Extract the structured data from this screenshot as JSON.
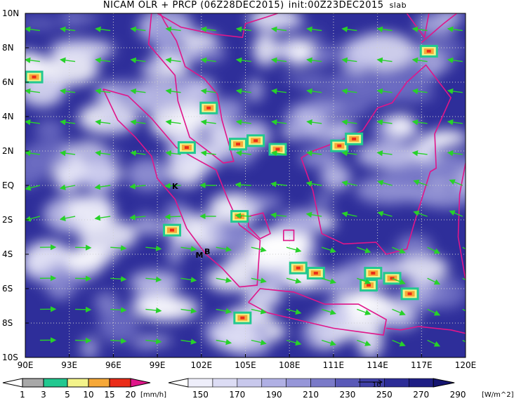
{
  "title": {
    "main": "NICAM OLR + PRCP (06Z28DEC2015)",
    "init": "init:00Z23DEC2015",
    "tag": "slab"
  },
  "axes": {
    "lon_labels": [
      "90E",
      "93E",
      "96E",
      "99E",
      "102E",
      "105E",
      "108E",
      "111E",
      "114E",
      "117E",
      "120E"
    ],
    "lat_labels": [
      "10N",
      "8N",
      "6N",
      "4N",
      "2N",
      "EQ",
      "2S",
      "4S",
      "6S",
      "8S",
      "10S"
    ],
    "lon_range": [
      90,
      120
    ],
    "lat_range": [
      -10,
      10
    ],
    "grid": "dotted"
  },
  "place_labels": [
    {
      "text": "K",
      "lon": 100.0,
      "lat": -0.2
    },
    {
      "text": "M",
      "lon": 101.6,
      "lat": -4.2
    },
    {
      "text": "B",
      "lon": 102.2,
      "lat": -4.0
    }
  ],
  "vector_reference": {
    "label": "10"
  },
  "precip_colorbar": {
    "ticks": [
      "1",
      "3",
      "5",
      "10",
      "15",
      "20"
    ],
    "unit": "[mm/h]",
    "colors": [
      "#ffffff",
      "#a8a8a8",
      "#22c890",
      "#f3f38a",
      "#f6a838",
      "#ea2c18",
      "#e0168a"
    ]
  },
  "olr_colorbar": {
    "ticks": [
      "150",
      "170",
      "190",
      "210",
      "230",
      "250",
      "270",
      "290"
    ],
    "unit": "[W/m^2]",
    "colors": [
      "#ffffff",
      "#eeeefa",
      "#dcdcf4",
      "#c8c8ec",
      "#b0b0e4",
      "#9696d8",
      "#7a7ac8",
      "#5a5ab8",
      "#4040a8",
      "#2c2c96",
      "#1e1e84",
      "#141470"
    ]
  },
  "colors": {
    "coast": "#e0168a",
    "frame": "#000000"
  }
}
